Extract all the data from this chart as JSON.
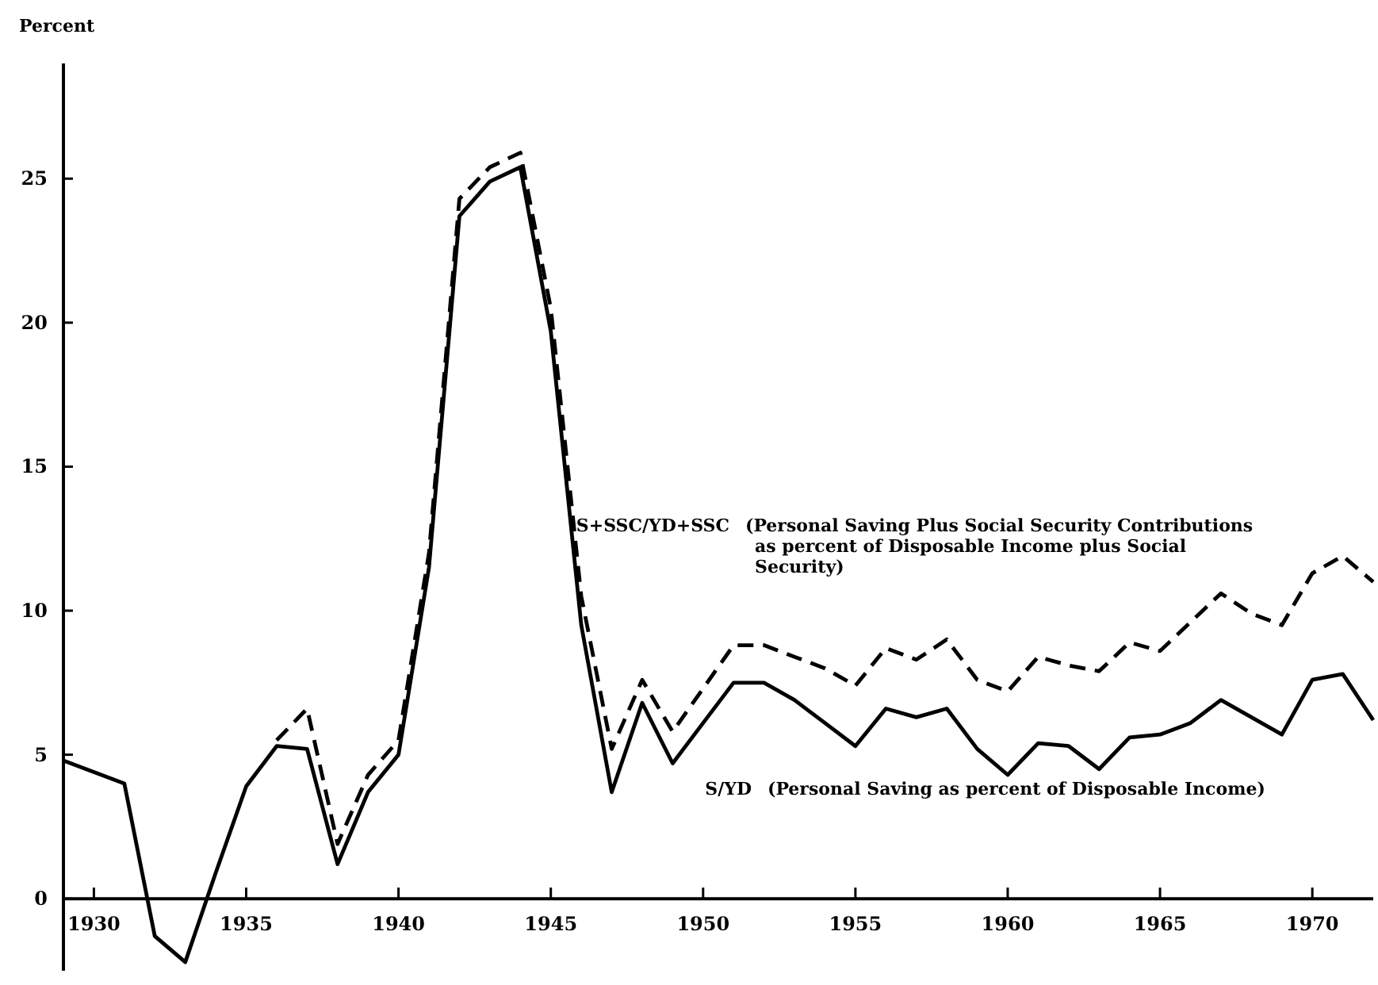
{
  "chart_data": {
    "type": "line",
    "ylabel": "Percent",
    "xlim": [
      1929,
      1972
    ],
    "ylim": [
      -2.5,
      29
    ],
    "xticks": [
      1930,
      1935,
      1940,
      1945,
      1950,
      1955,
      1960,
      1965,
      1970
    ],
    "yticks": [
      0,
      5,
      10,
      15,
      20,
      25
    ],
    "grid": false,
    "marker": "none",
    "series": [
      {
        "name": "S+SSC/YD+SSC",
        "color": "#000000",
        "line_style": "dashed",
        "x": [
          1936,
          1937,
          1938,
          1939,
          1940,
          1941,
          1942,
          1943,
          1944,
          1945,
          1946,
          1947,
          1948,
          1949,
          1950,
          1951,
          1952,
          1953,
          1954,
          1955,
          1956,
          1957,
          1958,
          1959,
          1960,
          1961,
          1962,
          1963,
          1964,
          1965,
          1966,
          1967,
          1968,
          1969,
          1970,
          1971,
          1972
        ],
        "values": [
          5.5,
          6.6,
          1.9,
          4.3,
          5.5,
          12,
          24.3,
          25.4,
          25.9,
          20.5,
          10.5,
          5.2,
          7.6,
          5.8,
          7.3,
          8.8,
          8.8,
          8.4,
          8.0,
          7.4,
          8.7,
          8.3,
          9.0,
          7.6,
          7.2,
          8.4,
          8.1,
          7.9,
          8.9,
          8.6,
          9.6,
          10.6,
          9.9,
          9.5,
          11.3,
          11.9,
          11.0
        ]
      },
      {
        "name": "S/YD",
        "color": "#000000",
        "line_style": "solid",
        "x": [
          1929,
          1931,
          1932,
          1933,
          1934,
          1935,
          1936,
          1937,
          1938,
          1939,
          1940,
          1941,
          1942,
          1943,
          1944,
          1945,
          1946,
          1947,
          1948,
          1949,
          1950,
          1951,
          1952,
          1953,
          1954,
          1955,
          1956,
          1957,
          1958,
          1959,
          1960,
          1961,
          1962,
          1963,
          1964,
          1965,
          1966,
          1967,
          1968,
          1969,
          1970,
          1971,
          1972
        ],
        "values": [
          4.8,
          4.0,
          -1.3,
          -2.2,
          0.9,
          3.9,
          5.3,
          5.2,
          1.2,
          3.7,
          5.0,
          11.5,
          23.7,
          24.9,
          25.4,
          19.7,
          9.5,
          3.7,
          6.8,
          4.7,
          6.1,
          7.5,
          7.5,
          6.9,
          6.1,
          5.3,
          6.6,
          6.3,
          6.6,
          5.2,
          4.3,
          5.4,
          5.3,
          4.5,
          5.6,
          5.7,
          6.1,
          6.9,
          6.3,
          5.7,
          7.6,
          7.8,
          6.2
        ]
      }
    ],
    "annotations": [
      "(Personal Saving Plus Social Security Contributions\nas percent of Disposable Income plus Social\nSecurity)",
      "(Personal Saving as percent of Disposable Income)"
    ]
  }
}
